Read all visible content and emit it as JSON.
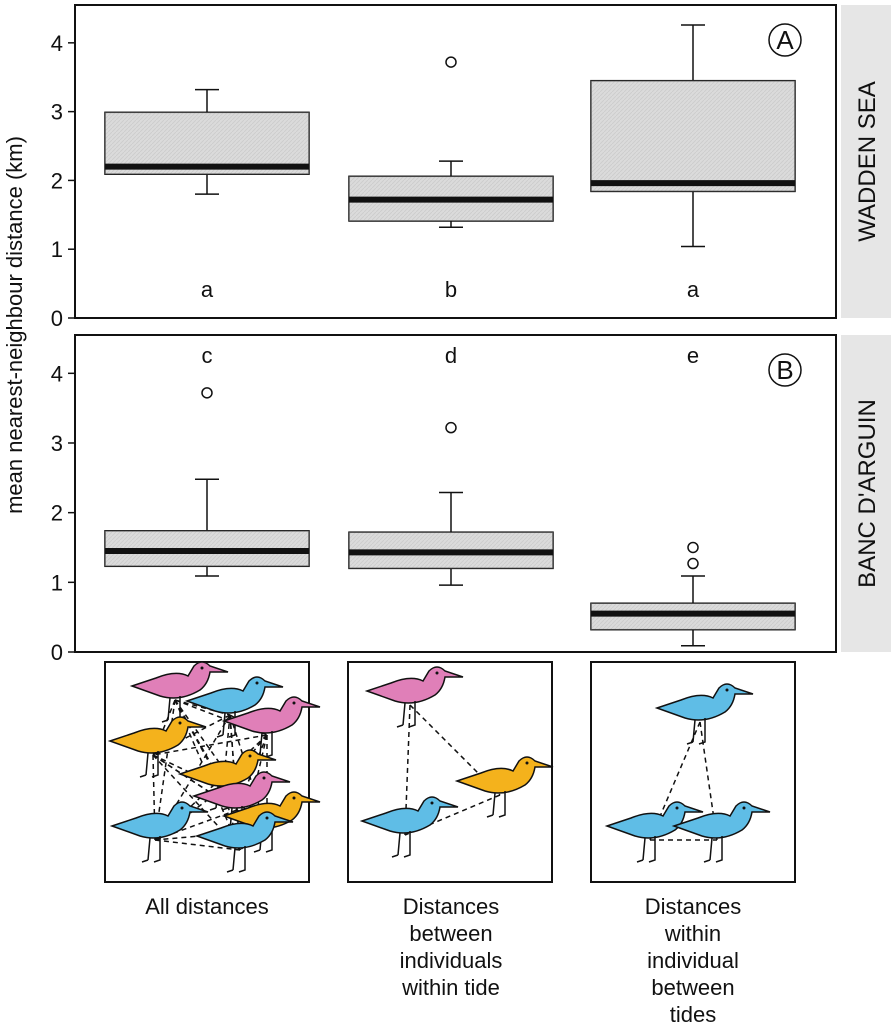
{
  "chart_data": [
    {
      "type": "box",
      "ylabel": "mean nearest-neighbour distance (km)",
      "panel_label": "A",
      "strip_label": "WADDEN SEA",
      "boxes": [
        {
          "min": 1.8,
          "q1": 2.09,
          "median": 2.2,
          "q3": 2.99,
          "max": 3.32,
          "outliers": []
        },
        {
          "min": 1.32,
          "q1": 1.41,
          "median": 1.72,
          "q3": 2.06,
          "max": 2.28,
          "outliers": [
            3.72
          ]
        },
        {
          "min": 1.04,
          "q1": 1.84,
          "median": 1.96,
          "q3": 3.45,
          "max": 4.26,
          "outliers": []
        }
      ],
      "letters": [
        "a",
        "b",
        "a"
      ],
      "box_color": "#d9d9d9",
      "ylim": [
        0,
        4.55
      ],
      "yticks": [
        0,
        1,
        2,
        3,
        4
      ]
    },
    {
      "type": "box",
      "panel_label": "B",
      "strip_label": "BANC D'ARGUIN",
      "categories": [
        "All distances",
        "Distances between individuals within tide",
        "Distances within individual between tides"
      ],
      "boxes": [
        {
          "min": 1.09,
          "q1": 1.23,
          "median": 1.45,
          "q3": 1.74,
          "max": 2.48,
          "outliers": [
            3.72
          ]
        },
        {
          "min": 0.96,
          "q1": 1.2,
          "median": 1.43,
          "q3": 1.72,
          "max": 2.29,
          "outliers": [
            3.22
          ]
        },
        {
          "min": 0.09,
          "q1": 0.32,
          "median": 0.55,
          "q3": 0.7,
          "max": 1.09,
          "outliers": [
            1.27,
            1.5
          ]
        }
      ],
      "letters": [
        "c",
        "d",
        "e"
      ],
      "box_color": "#d9d9d9",
      "ylim": [
        0,
        4.55
      ],
      "yticks": [
        0,
        1,
        2,
        3,
        4
      ]
    }
  ]
}
